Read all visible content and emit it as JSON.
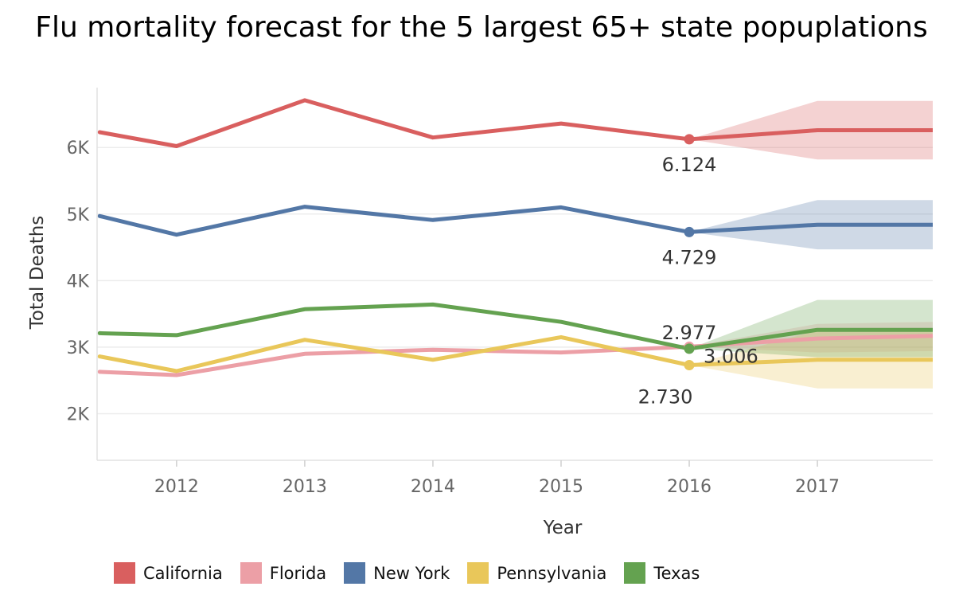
{
  "chart_data": {
    "type": "line",
    "title": "Flu mortality forecast for the 5 largest 65+ state popuplations",
    "xlabel": "Year",
    "ylabel": "Total Deaths",
    "x": [
      2011.4,
      2012,
      2013,
      2014,
      2015,
      2016
    ],
    "forecast_x": [
      2016,
      2017,
      2017.9
    ],
    "xlim": [
      2011.38,
      2017.9
    ],
    "ylim": [
      1300,
      6900
    ],
    "x_ticks": [
      "2012",
      "2013",
      "2014",
      "2015",
      "2016",
      "2017"
    ],
    "y_ticks": [
      {
        "value": 2000,
        "label": "2K"
      },
      {
        "value": 3000,
        "label": "3K"
      },
      {
        "value": 4000,
        "label": "4K"
      },
      {
        "value": 5000,
        "label": "5K"
      },
      {
        "value": 6000,
        "label": "6K"
      }
    ],
    "grid": true,
    "legend_position": "bottom",
    "series": [
      {
        "name": "California",
        "color": "#d95f5f",
        "values": [
          6230,
          6020,
          6710,
          6150,
          6360,
          6124
        ],
        "forecast": [
          6124,
          6260,
          6260
        ],
        "band_upper": [
          6124,
          6700,
          6700
        ],
        "band_lower": [
          6124,
          5820,
          5820
        ],
        "label": "6.124"
      },
      {
        "name": "Florida",
        "color": "#ec9fa6",
        "values": [
          2630,
          2580,
          2900,
          2960,
          2920,
          3006
        ],
        "forecast": [
          3006,
          3130,
          3170
        ],
        "band_upper": [
          3006,
          3350,
          3380
        ],
        "band_lower": [
          3006,
          2920,
          2940
        ],
        "label": "3.006"
      },
      {
        "name": "New York",
        "color": "#5377a6",
        "values": [
          4970,
          4690,
          5110,
          4910,
          5100,
          4729
        ],
        "forecast": [
          4729,
          4840,
          4840
        ],
        "band_upper": [
          4729,
          5210,
          5210
        ],
        "band_lower": [
          4729,
          4470,
          4470
        ],
        "label": "4.729"
      },
      {
        "name": "Pennsylvania",
        "color": "#e9c75a",
        "values": [
          2860,
          2640,
          3110,
          2810,
          3150,
          2730
        ],
        "forecast": [
          2730,
          2810,
          2810
        ],
        "band_upper": [
          2730,
          3250,
          3250
        ],
        "band_lower": [
          2730,
          2380,
          2380
        ],
        "label": "2.730"
      },
      {
        "name": "Texas",
        "color": "#64a250",
        "values": [
          3210,
          3180,
          3570,
          3640,
          3380,
          2977
        ],
        "forecast": [
          2977,
          3260,
          3260
        ],
        "band_upper": [
          2977,
          3710,
          3710
        ],
        "band_lower": [
          2977,
          2850,
          2850
        ],
        "label": "2.977"
      }
    ]
  }
}
